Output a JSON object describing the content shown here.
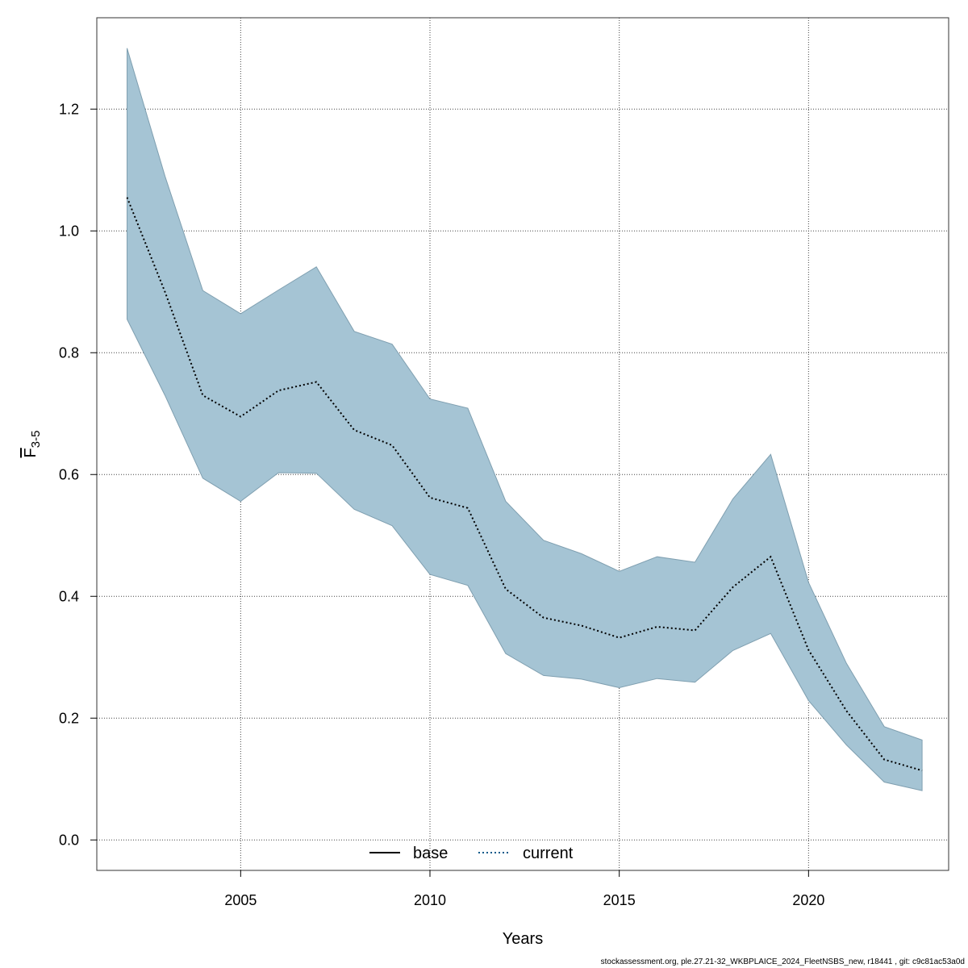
{
  "chart_data": {
    "type": "area",
    "xlabel": "Years",
    "ylabel": {
      "main": "F",
      "subscript": "3-5"
    },
    "xlim": [
      2001.2,
      2023.7
    ],
    "ylim": [
      -0.05,
      1.35
    ],
    "xticks": [
      2005,
      2010,
      2015,
      2020
    ],
    "yticks": [
      0.0,
      0.2,
      0.4,
      0.6,
      0.8,
      1.0,
      1.2
    ],
    "grid": true,
    "legend": {
      "placement": "bottom-center",
      "entries": [
        {
          "name": "base",
          "style": "solid",
          "color": "#000000"
        },
        {
          "name": "current",
          "style": "dotted",
          "color": "#0b5a8a"
        }
      ]
    },
    "band_color": "#a5c4d4",
    "band_edge_color": "#7f9fb0",
    "x": [
      2002,
      2003,
      2004,
      2005,
      2006,
      2007,
      2008,
      2009,
      2010,
      2011,
      2012,
      2013,
      2014,
      2015,
      2016,
      2017,
      2018,
      2019,
      2020,
      2021,
      2022,
      2023
    ],
    "series": [
      {
        "name": "current",
        "values": [
          1.055,
          0.9,
          0.73,
          0.695,
          0.738,
          0.752,
          0.673,
          0.648,
          0.562,
          0.545,
          0.412,
          0.365,
          0.352,
          0.332,
          0.35,
          0.344,
          0.415,
          0.465,
          0.312,
          0.212,
          0.132,
          0.114
        ]
      },
      {
        "name": "upper",
        "values": [
          1.3,
          1.09,
          0.902,
          0.864,
          0.903,
          0.941,
          0.835,
          0.814,
          0.724,
          0.709,
          0.556,
          0.492,
          0.47,
          0.441,
          0.465,
          0.456,
          0.56,
          0.633,
          0.423,
          0.29,
          0.186,
          0.164
        ]
      },
      {
        "name": "lower",
        "values": [
          0.855,
          0.73,
          0.594,
          0.556,
          0.603,
          0.602,
          0.543,
          0.516,
          0.436,
          0.418,
          0.306,
          0.27,
          0.264,
          0.25,
          0.265,
          0.259,
          0.311,
          0.339,
          0.229,
          0.156,
          0.095,
          0.081
        ]
      }
    ]
  },
  "footer": "stockassessment.org, ple.27.21-32_WKBPLAICE_2024_FleetNSBS_new, r18441 , git: c9c81ac53a0d"
}
